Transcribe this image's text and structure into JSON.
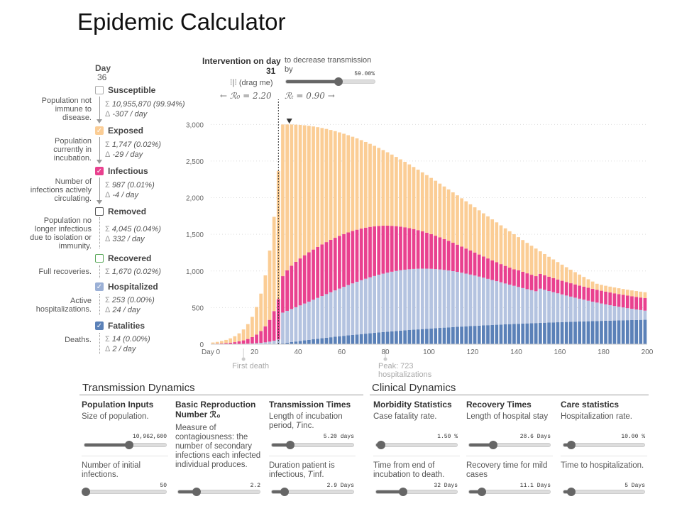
{
  "title": "Epidemic Calculator",
  "legend": {
    "day_label": "Day",
    "day_value": "36",
    "categories": [
      {
        "name": "Susceptible",
        "checked": false,
        "color": "#ffffff",
        "border": "#999999",
        "desc": [
          "Population not",
          "immune to",
          "disease."
        ],
        "sum": "10,955,870 (99.94%)",
        "delta": "-307 / day"
      },
      {
        "name": "Exposed",
        "checked": true,
        "color": "#fbcd95",
        "border": "#fbcd95",
        "desc": [
          "Population",
          "currently in",
          "incubation."
        ],
        "sum": "1,747 (0.02%)",
        "delta": "-29 / day"
      },
      {
        "name": "Infectious",
        "checked": true,
        "color": "#e9418f",
        "border": "#e9418f",
        "desc": [
          "Number of",
          "infections actively",
          "circulating."
        ],
        "sum": "987 (0.01%)",
        "delta": "-4 / day"
      },
      {
        "name": "Removed",
        "checked": false,
        "color": "#ffffff",
        "border": "#555555",
        "desc": [
          "Population no",
          "longer infectious",
          "due to isolation or",
          "immunity."
        ],
        "sum": "4,045 (0.04%)",
        "delta": "332 / day"
      },
      {
        "name": "Recovered",
        "checked": false,
        "color": "#ffffff",
        "border": "#5aa95a",
        "desc": [
          "Full recoveries."
        ],
        "sum": "1,670 (0.02%)",
        "delta": ""
      },
      {
        "name": "Hospitalized",
        "checked": true,
        "color": "#9bb0d6",
        "border": "#9bb0d6",
        "desc": [
          "Active",
          "hospitalizations."
        ],
        "sum": "253 (0.00%)",
        "delta": "24 / day"
      },
      {
        "name": "Fatalities",
        "checked": true,
        "color": "#5b81b8",
        "border": "#5b81b8",
        "desc": [
          "Deaths."
        ],
        "sum": "14 (0.00%)",
        "delta": "2 / day"
      }
    ]
  },
  "intervention": {
    "title": "Intervention on day",
    "day": "31",
    "drag": "(drag me)",
    "r0_text": "← ℛ₀ = 2.20",
    "rt_text": "ℛₜ = 0.90 →",
    "decrease_label": "to decrease transmission by",
    "decrease_value": "59.00%",
    "decrease_fraction": 0.59
  },
  "chart_data": {
    "type": "bar",
    "stacked": true,
    "x_start": 0,
    "x_end": 200,
    "x_ticks": [
      "Day 0",
      "20",
      "40",
      "60",
      "80",
      "100",
      "120",
      "140",
      "160",
      "180",
      "200"
    ],
    "y_ticks": [
      "0",
      "500",
      "1,000",
      "1,500",
      "2,000",
      "2,500",
      "3,000"
    ],
    "ylim": [
      0,
      3100
    ],
    "intervention_day": 31,
    "peak_day": 36,
    "annotations": [
      {
        "day": 15,
        "text": "First death"
      },
      {
        "day": 80,
        "text": "Peak: 723",
        "text2": "hospitalizations"
      }
    ],
    "series": [
      {
        "name": "Fatalities",
        "color": "#5b81b8"
      },
      {
        "name": "Hospitalized",
        "color": "#b4c3e0"
      },
      {
        "name": "Infectious",
        "color": "#e9418f"
      },
      {
        "name": "Exposed",
        "color": "#fbcd95"
      }
    ]
  },
  "transmission": {
    "title": "Transmission Dynamics",
    "columns": [
      {
        "title": "Population Inputs",
        "params": [
          {
            "desc": "Size of population.",
            "value": "10,962,600",
            "fraction": 0.55
          },
          {
            "desc": "Number of initial infections.",
            "value": "50",
            "fraction": 0.02
          }
        ]
      },
      {
        "title": "Basic Reproduction Number ℛ₀",
        "params": [
          {
            "desc": "Measure of contagiousness: the number of secondary infections each infected individual produces.",
            "value": "2.2",
            "fraction": 0.23
          }
        ]
      },
      {
        "title": "Transmission Times",
        "params": [
          {
            "desc": "Length of incubation period, 𝑇inc.",
            "value": "5.20 days",
            "fraction": 0.23
          },
          {
            "desc": "Duration patient is infectious, 𝑇inf.",
            "value": "2.9 Days",
            "fraction": 0.16
          }
        ]
      }
    ]
  },
  "clinical": {
    "title": "Clinical Dynamics",
    "columns": [
      {
        "title": "Morbidity Statistics",
        "params": [
          {
            "desc": "Case fatality rate.",
            "value": "1.50 %",
            "fraction": 0.06
          },
          {
            "desc": "Time from end of incubation to death.",
            "value": "32 Days",
            "fraction": 0.33
          }
        ]
      },
      {
        "title": "Recovery Times",
        "params": [
          {
            "desc": "Length of hospital stay",
            "value": "28.6 Days",
            "fraction": 0.3
          },
          {
            "desc": "Recovery time for mild cases",
            "value": "11.1 Days",
            "fraction": 0.16
          }
        ]
      },
      {
        "title": "Care statistics",
        "params": [
          {
            "desc": "Hospitalization rate.",
            "value": "10.00 %",
            "fraction": 0.1
          },
          {
            "desc": "Time to hospitalization.",
            "value": "5 Days",
            "fraction": 0.1
          }
        ]
      }
    ]
  }
}
